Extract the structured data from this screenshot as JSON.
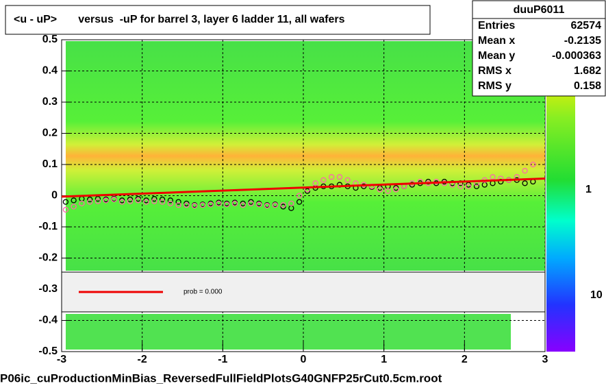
{
  "chart_data": {
    "type": "profile",
    "title": "<u - uP>       versus  -uP for barrel 3, layer 6 ladder 11, all wafers",
    "footer": "P06ic_cuProductionMinBias_ReversedFullFieldPlotsG40GNFP25rCut0.5cm.root",
    "stats": {
      "name": "duuP6011",
      "rows": [
        [
          "Entries",
          "62574"
        ],
        [
          "Mean x",
          "-0.2135"
        ],
        [
          "Mean y",
          "-0.000363"
        ],
        [
          "RMS x",
          "1.682"
        ],
        [
          "RMS y",
          "0.158"
        ]
      ]
    },
    "legend_text": "prob = 0.000",
    "colorbar_labels": [
      "1",
      "10"
    ],
    "xlim": [
      -3,
      3
    ],
    "ylim": [
      -0.5,
      0.5
    ],
    "xticks": [
      -3,
      -2,
      -1,
      0,
      1,
      2,
      3
    ],
    "yticks": [
      -0.5,
      -0.4,
      -0.3,
      -0.2,
      -0.1,
      0,
      0.1,
      0.2,
      0.3,
      0.4,
      0.5
    ],
    "grid": true,
    "x": [
      -2.95,
      -2.85,
      -2.75,
      -2.65,
      -2.55,
      -2.45,
      -2.35,
      -2.25,
      -2.15,
      -2.05,
      -1.95,
      -1.85,
      -1.75,
      -1.65,
      -1.55,
      -1.45,
      -1.35,
      -1.25,
      -1.15,
      -1.05,
      -0.95,
      -0.85,
      -0.75,
      -0.65,
      -0.55,
      -0.45,
      -0.35,
      -0.25,
      -0.15,
      -0.05,
      0.05,
      0.15,
      0.25,
      0.35,
      0.45,
      0.55,
      0.65,
      0.75,
      0.85,
      0.95,
      1.05,
      1.15,
      1.25,
      1.35,
      1.45,
      1.55,
      1.65,
      1.75,
      1.85,
      1.95,
      2.05,
      2.15,
      2.25,
      2.35,
      2.45,
      2.55,
      2.65,
      2.75,
      2.85
    ],
    "series": [
      {
        "color": "#000000",
        "values": [
          -0.02,
          -0.015,
          -0.01,
          -0.012,
          -0.01,
          -0.012,
          -0.01,
          -0.015,
          -0.012,
          -0.01,
          -0.015,
          -0.01,
          -0.012,
          -0.015,
          -0.02,
          -0.025,
          -0.03,
          -0.028,
          -0.025,
          -0.022,
          -0.025,
          -0.022,
          -0.025,
          -0.02,
          -0.025,
          -0.03,
          -0.028,
          -0.035,
          -0.04,
          -0.02,
          0.015,
          0.025,
          0.03,
          0.03,
          0.035,
          0.03,
          0.025,
          0.03,
          0.028,
          0.025,
          0.03,
          0.025,
          0.03,
          0.035,
          0.04,
          0.045,
          0.04,
          0.045,
          0.04,
          0.04,
          0.035,
          0.03,
          0.035,
          0.04,
          0.045,
          0.05,
          0.05,
          0.04,
          0.045
        ]
      },
      {
        "color": "#ff66aa",
        "values": [
          -0.045,
          -0.035,
          -0.025,
          -0.02,
          -0.018,
          -0.015,
          -0.012,
          -0.02,
          -0.018,
          -0.015,
          -0.02,
          -0.018,
          -0.02,
          -0.025,
          -0.03,
          -0.03,
          -0.032,
          -0.03,
          -0.028,
          -0.025,
          -0.028,
          -0.025,
          -0.03,
          -0.025,
          -0.028,
          -0.032,
          -0.03,
          -0.03,
          -0.025,
          0.0,
          0.02,
          0.04,
          0.05,
          0.06,
          0.06,
          0.05,
          0.04,
          0.035,
          0.03,
          0.02,
          0.015,
          0.02,
          0.03,
          0.04,
          0.045,
          0.04,
          0.045,
          0.04,
          0.035,
          0.03,
          0.03,
          0.04,
          0.05,
          0.06,
          0.055,
          0.05,
          0.06,
          0.08,
          0.1
        ]
      }
    ],
    "fit": {
      "color": "#ee0000",
      "x": [
        -3,
        3
      ],
      "values": [
        -0.003,
        0.055
      ]
    }
  }
}
